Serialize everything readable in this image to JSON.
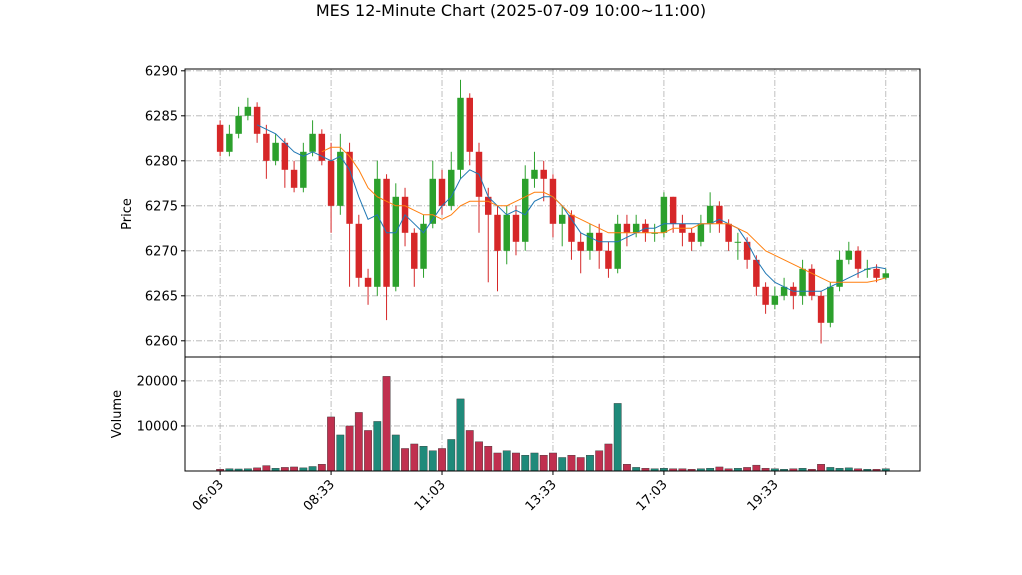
{
  "chart_data": {
    "type": "candlestick",
    "title": "MES 12-Minute Chart (2025-07-09 10:00~11:00)",
    "categories": [
      "06:03",
      null,
      null,
      null,
      null,
      null,
      null,
      null,
      null,
      null,
      null,
      null,
      "08:33",
      null,
      null,
      null,
      null,
      null,
      null,
      null,
      null,
      null,
      null,
      null,
      "11:03",
      null,
      null,
      null,
      null,
      null,
      null,
      null,
      null,
      null,
      null,
      null,
      "13:33",
      null,
      null,
      null,
      null,
      null,
      null,
      null,
      null,
      null,
      null,
      null,
      "17:03",
      null,
      null,
      null,
      null,
      null,
      null,
      null,
      null,
      null,
      null,
      null,
      "19:33",
      null,
      null,
      null,
      null,
      null,
      null,
      null,
      null,
      null,
      null,
      null,
      null
    ],
    "xticks": [
      0,
      12,
      24,
      36,
      48,
      60,
      72
    ],
    "xlim": [
      -3.8,
      75.7
    ],
    "ylabel": "Price",
    "ylim": [
      6258.2,
      6290.2
    ],
    "yticks": [
      6260,
      6265,
      6270,
      6275,
      6280,
      6285,
      6290
    ],
    "grid": true,
    "up_color": "#2ca02c",
    "down_color": "#d62728",
    "open": [
      6284,
      6281,
      6283,
      6285,
      6286,
      6283,
      6280,
      6282,
      6279,
      6277,
      6281,
      6283,
      6280,
      6275,
      6281,
      6273,
      6267,
      6266,
      6278,
      6266,
      6276,
      6272,
      6268,
      6273,
      6278,
      6275,
      6279,
      6287,
      6281,
      6276,
      6274,
      6270,
      6274,
      6271,
      6278,
      6279,
      6278,
      6273,
      6274,
      6271,
      6270,
      6272,
      6270,
      6268,
      6273,
      6272,
      6273,
      6272,
      6272,
      6276,
      6273,
      6272,
      6271,
      6273,
      6275,
      6273,
      6271,
      6271,
      6269,
      6266,
      6264,
      6265,
      6266,
      6265,
      6268,
      6265,
      6262,
      6266,
      6269,
      6270,
      6268,
      6268,
      6267
    ],
    "high": [
      6284.5,
      6284,
      6286,
      6287,
      6286.5,
      6284,
      6283,
      6282.5,
      6280,
      6282,
      6284.5,
      6283.5,
      6282,
      6283,
      6282,
      6274,
      6268,
      6280,
      6278.5,
      6277.5,
      6277,
      6272.5,
      6274,
      6280,
      6279,
      6281,
      6289,
      6287.5,
      6282,
      6277,
      6275,
      6275,
      6275,
      6279.5,
      6281,
      6280,
      6278.5,
      6275,
      6274.5,
      6272,
      6273,
      6273,
      6271,
      6274,
      6274,
      6274,
      6273.5,
      6273,
      6276.5,
      6276,
      6274,
      6272.5,
      6274,
      6276.5,
      6275.5,
      6273.5,
      6272,
      6271.5,
      6269.5,
      6266.5,
      6266,
      6267,
      6266.5,
      6269,
      6268.5,
      6265.5,
      6266.5,
      6270,
      6271,
      6270.5,
      6269,
      6268.5,
      6268
    ],
    "low": [
      6280.5,
      6280.5,
      6282.5,
      6284.5,
      6282,
      6278,
      6279.5,
      6277,
      6276.5,
      6276.5,
      6280.5,
      6279.5,
      6272,
      6274,
      6266,
      6266,
      6264,
      6265,
      6262.3,
      6265.5,
      6270.5,
      6266,
      6267,
      6272.5,
      6274,
      6274.5,
      6278,
      6279.5,
      6272,
      6266.5,
      6265.5,
      6268.5,
      6269.5,
      6270,
      6277,
      6275.5,
      6271.5,
      6270.5,
      6269,
      6267.5,
      6269,
      6268,
      6267,
      6267.5,
      6270.5,
      6271.5,
      6271,
      6271,
      6271.5,
      6272,
      6270.5,
      6270,
      6270.5,
      6272,
      6272,
      6270,
      6269,
      6268,
      6265,
      6263,
      6263.5,
      6264.5,
      6263.5,
      6264,
      6264.5,
      6259.7,
      6261.5,
      6265.5,
      6268.5,
      6267,
      6267,
      6266.5,
      6266.8
    ],
    "close": [
      6281,
      6283,
      6285,
      6286,
      6283,
      6280,
      6282,
      6279,
      6277,
      6281,
      6283,
      6280,
      6275,
      6281,
      6273,
      6267,
      6266,
      6278,
      6266,
      6276,
      6272,
      6268,
      6273,
      6278,
      6275,
      6279,
      6287,
      6281,
      6276,
      6274,
      6270,
      6274,
      6271,
      6278,
      6279,
      6278,
      6273,
      6274,
      6271,
      6270,
      6272,
      6270,
      6268,
      6273,
      6272,
      6273,
      6272,
      6272,
      6276,
      6273,
      6272,
      6271,
      6273,
      6275,
      6273,
      6271,
      6271,
      6269,
      6266,
      6264,
      6265,
      6266,
      6265,
      6268,
      6265,
      6262,
      6266,
      6269,
      6270,
      6268,
      6268,
      6267,
      6267.5
    ],
    "series": [
      {
        "color": "#1f77b4",
        "values": [
          null,
          null,
          null,
          null,
          6284,
          6283.5,
          6283,
          6282,
          6281,
          6280.5,
          6281,
          6280.5,
          6280,
          6280.5,
          6279,
          6276,
          6273.5,
          6274,
          6272,
          6272,
          6274,
          6273,
          6272,
          6273.5,
          6275,
          6276,
          6278,
          6279,
          6278.5,
          6276,
          6275,
          6274,
          6274.5,
          6274,
          6275.5,
          6276,
          6276,
          6275,
          6273.5,
          6272,
          6271.5,
          6271,
          6271,
          6271,
          6271.5,
          6272,
          6272.5,
          6272.5,
          6273,
          6273,
          6273,
          6273,
          6273,
          6273,
          6273.5,
          6273,
          6272.5,
          6271,
          6269,
          6267.5,
          6266.5,
          6266,
          6265.5,
          6265.5,
          6265.5,
          6265.5,
          6266,
          6266.5,
          6267,
          6267.5,
          6268,
          6268.2,
          6268
        ]
      },
      {
        "color": "#ff7f0e",
        "values": [
          null,
          null,
          null,
          null,
          null,
          null,
          null,
          null,
          null,
          null,
          null,
          6281,
          6281.5,
          6281.5,
          6280.5,
          6279,
          6277,
          6276,
          6275.5,
          6275,
          6275,
          6274.5,
          6274,
          6274,
          6273.5,
          6274,
          6275,
          6275.5,
          6275.5,
          6275.5,
          6275,
          6275,
          6275.5,
          6276,
          6276.5,
          6276.5,
          6276,
          6275,
          6274,
          6273.5,
          6273,
          6272.5,
          6272,
          6272,
          6272,
          6272,
          6272,
          6272,
          6272,
          6272.5,
          6272.5,
          6272.5,
          6273,
          6273,
          6273,
          6273,
          6272.5,
          6272,
          6271,
          6270,
          6269.5,
          6269,
          6268.5,
          6268,
          6267.5,
          6267,
          6266.5,
          6266.5,
          6266.5,
          6266.5,
          6266.5,
          6266.7,
          6267
        ]
      }
    ],
    "volume": {
      "ylabel": "Volume",
      "ylim": [
        0,
        25300
      ],
      "yticks": [
        10000,
        20000
      ],
      "up_color": "#1f8a7a",
      "down_color": "#c0304f",
      "values": [
        400,
        500,
        450,
        500,
        700,
        1200,
        600,
        800,
        900,
        700,
        1000,
        1500,
        12000,
        8000,
        10000,
        13000,
        9000,
        11000,
        21000,
        8000,
        5000,
        6000,
        5500,
        4500,
        5000,
        7000,
        16000,
        9000,
        6500,
        5500,
        4000,
        4500,
        4000,
        3500,
        4000,
        3500,
        4000,
        3000,
        3500,
        3000,
        3500,
        4500,
        6000,
        15000,
        1500,
        800,
        600,
        500,
        600,
        500,
        500,
        400,
        500,
        600,
        900,
        500,
        600,
        800,
        1300,
        600,
        500,
        400,
        500,
        600,
        400,
        1500,
        800,
        600,
        700,
        500,
        400,
        400,
        500
      ]
    }
  }
}
